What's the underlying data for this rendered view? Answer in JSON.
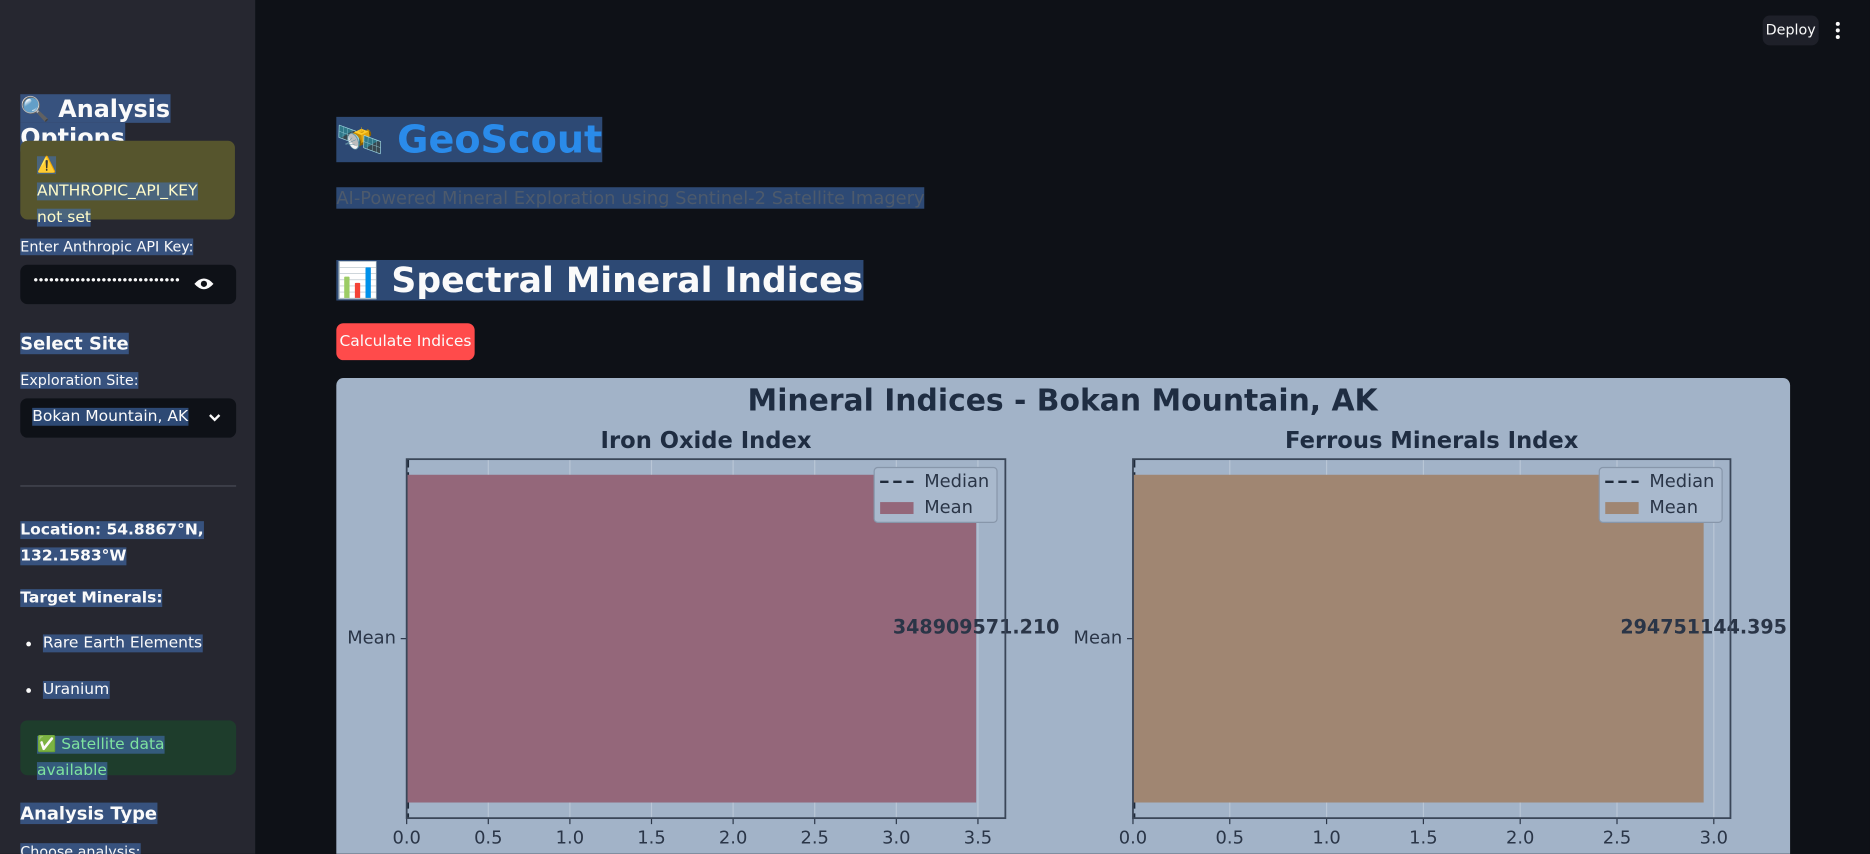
{
  "sidebar": {
    "heading": "🔍 Analysis Options",
    "warning": "⚠️ ANTHROPIC_API_KEY not set",
    "api_key_label": "Enter Anthropic API Key:",
    "api_key_mask": "••••••••••••••••••••••••••••••••",
    "site_heading": "Select Site",
    "site_label": "Exploration Site:",
    "site_value": "Bokan Mountain, AK",
    "location": "Location: 54.8867°N, 132.1583°W",
    "targets_label": "Target Minerals:",
    "targets": [
      "Rare Earth Elements",
      "Uranium"
    ],
    "success": "✅ Satellite data available",
    "analysis_heading": "Analysis Type",
    "analysis_label": "Choose analysis:"
  },
  "toolbar": {
    "deploy": "Deploy"
  },
  "header": {
    "title": "🛰️ GeoScout",
    "subtitle": "AI-Powered Mineral Exploration using Sentinel-2 Satellite Imagery",
    "section": "📊 Spectral Mineral Indices",
    "button": "Calculate Indices"
  },
  "figure_title": "Mineral Indices - Bokan Mountain, AK",
  "chart_data": [
    {
      "type": "barh",
      "title": "Iron Oxide Index",
      "categories": [
        "Mean"
      ],
      "series": [
        {
          "name": "Median",
          "kind": "vline",
          "color": "#1f2a3a",
          "values": [
            0
          ]
        },
        {
          "name": "Mean",
          "kind": "bar",
          "color": "#94677a",
          "values": [
            348909571.21
          ],
          "value_labels": [
            "348909571.210"
          ]
        }
      ],
      "xlim": [
        0,
        366800000
      ],
      "xticks": [
        {
          "value": 0,
          "label": "0.0"
        },
        {
          "value": 50000000,
          "label": "0.5"
        },
        {
          "value": 100000000,
          "label": "1.0"
        },
        {
          "value": 150000000,
          "label": "1.5"
        },
        {
          "value": 200000000,
          "label": "2.0"
        },
        {
          "value": 250000000,
          "label": "2.5"
        },
        {
          "value": 300000000,
          "label": "3.0"
        },
        {
          "value": 350000000,
          "label": "3.5"
        }
      ],
      "grid": true,
      "legend": "upper right"
    },
    {
      "type": "barh",
      "title": "Ferrous Minerals Index",
      "categories": [
        "Mean"
      ],
      "series": [
        {
          "name": "Median",
          "kind": "vline",
          "color": "#1f2a3a",
          "values": [
            0
          ]
        },
        {
          "name": "Mean",
          "kind": "bar",
          "color": "#a08672",
          "values": [
            294751144.395
          ],
          "value_labels": [
            "294751144.395"
          ]
        }
      ],
      "xlim": [
        0,
        308600000
      ],
      "xticks": [
        {
          "value": 0,
          "label": "0.0"
        },
        {
          "value": 50000000,
          "label": "0.5"
        },
        {
          "value": 100000000,
          "label": "1.0"
        },
        {
          "value": 150000000,
          "label": "1.5"
        },
        {
          "value": 200000000,
          "label": "2.0"
        },
        {
          "value": 250000000,
          "label": "2.5"
        },
        {
          "value": 300000000,
          "label": "3.0"
        }
      ],
      "grid": true,
      "legend": "upper right"
    }
  ]
}
